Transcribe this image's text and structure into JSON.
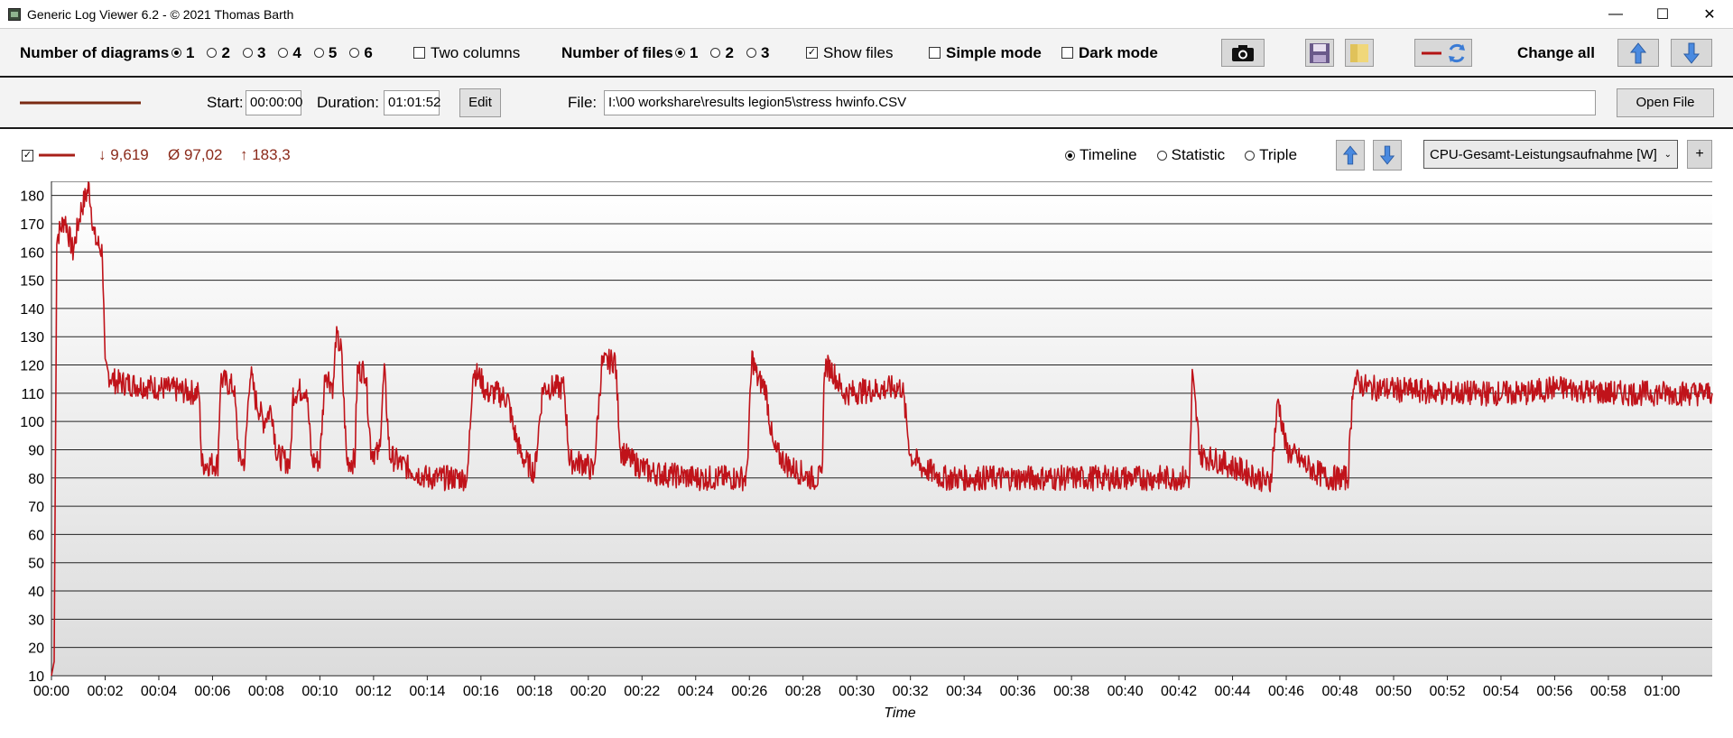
{
  "window": {
    "title": "Generic Log Viewer 6.2 - © 2021 Thomas Barth",
    "minimize": "—",
    "maximize": "☐",
    "close": "✕"
  },
  "toolbar": {
    "diagrams_label": "Number of diagrams",
    "diagram_options": [
      "1",
      "2",
      "3",
      "4",
      "5",
      "6"
    ],
    "diagram_selected": "1",
    "two_columns_label": "Two columns",
    "two_columns_checked": false,
    "files_label": "Number of files",
    "file_options": [
      "1",
      "2",
      "3"
    ],
    "file_selected": "1",
    "show_files_label": "Show files",
    "show_files_checked": true,
    "simple_mode_label": "Simple mode",
    "simple_mode_checked": false,
    "dark_mode_label": "Dark mode",
    "dark_mode_checked": false,
    "change_all_label": "Change all"
  },
  "file_row": {
    "start_label": "Start:",
    "start_value": "00:00:00",
    "duration_label": "Duration:",
    "duration_value": "01:01:52",
    "edit_label": "Edit",
    "file_label": "File:",
    "file_path": "I:\\00 workshare\\results legion5\\stress hwinfo.CSV",
    "open_file_label": "Open File",
    "line_color": "#7a2a12"
  },
  "series_row": {
    "min": "↓ 9,619",
    "avg": "Ø 97,02",
    "max": "↑ 183,3",
    "mode_options": [
      "Timeline",
      "Statistic",
      "Triple"
    ],
    "mode_selected": "Timeline",
    "sensor": "CPU-Gesamt-Leistungsaufnahme [W]",
    "add_label": "+"
  },
  "colors": {
    "line": "#c0131a",
    "line_dark": "#7a2a12",
    "stat_text": "#8b2a1a",
    "accent_arrow": "#3a7bd5"
  },
  "chart_data": {
    "type": "line",
    "xlabel": "Time",
    "ylabel": "",
    "ylim": [
      10,
      185
    ],
    "yticks": [
      10,
      20,
      30,
      40,
      50,
      60,
      70,
      80,
      90,
      100,
      110,
      120,
      130,
      140,
      150,
      160,
      170,
      180
    ],
    "xticks": [
      "00:00",
      "00:02",
      "00:04",
      "00:06",
      "00:08",
      "00:10",
      "00:12",
      "00:14",
      "00:16",
      "00:18",
      "00:20",
      "00:22",
      "00:24",
      "00:26",
      "00:28",
      "00:30",
      "00:32",
      "00:34",
      "00:36",
      "00:38",
      "00:40",
      "00:42",
      "00:44",
      "00:46",
      "00:48",
      "00:50",
      "00:52",
      "00:54",
      "00:56",
      "00:58",
      "01:00"
    ],
    "xlim_minutes": [
      0,
      61.87
    ],
    "grid": true,
    "series": [
      {
        "name": "CPU-Gesamt-Leistungsaufnahme [W]",
        "segments_minutes": [
          [
            0.0,
            10
          ],
          [
            0.1,
            15
          ],
          [
            0.2,
            165
          ],
          [
            0.5,
            172
          ],
          [
            0.8,
            160
          ],
          [
            1.1,
            175
          ],
          [
            1.4,
            183
          ],
          [
            1.6,
            165
          ],
          [
            1.9,
            160
          ],
          [
            2.0,
            118
          ],
          [
            2.4,
            114
          ],
          [
            5.5,
            110
          ],
          [
            5.6,
            85
          ],
          [
            6.2,
            85
          ],
          [
            6.3,
            115
          ],
          [
            6.8,
            112
          ],
          [
            7.0,
            86
          ],
          [
            7.2,
            86
          ],
          [
            7.4,
            118
          ],
          [
            7.6,
            108
          ],
          [
            7.9,
            100
          ],
          [
            8.2,
            105
          ],
          [
            8.4,
            88
          ],
          [
            8.9,
            85
          ],
          [
            9.0,
            110
          ],
          [
            9.5,
            112
          ],
          [
            9.7,
            86
          ],
          [
            10.0,
            86
          ],
          [
            10.2,
            118
          ],
          [
            10.5,
            112
          ],
          [
            10.6,
            130
          ],
          [
            10.8,
            125
          ],
          [
            11.0,
            86
          ],
          [
            11.3,
            86
          ],
          [
            11.4,
            118
          ],
          [
            11.7,
            118
          ],
          [
            11.9,
            90
          ],
          [
            12.2,
            88
          ],
          [
            12.4,
            118
          ],
          [
            12.6,
            88
          ],
          [
            13.0,
            85
          ],
          [
            14.0,
            80
          ],
          [
            15.2,
            80
          ],
          [
            15.5,
            80
          ],
          [
            15.7,
            118
          ],
          [
            16.0,
            115
          ],
          [
            16.2,
            110
          ],
          [
            16.6,
            110
          ],
          [
            17.0,
            108
          ],
          [
            17.2,
            98
          ],
          [
            17.5,
            88
          ],
          [
            18.0,
            82
          ],
          [
            18.3,
            112
          ],
          [
            19.1,
            112
          ],
          [
            19.3,
            86
          ],
          [
            19.9,
            85
          ],
          [
            20.2,
            82
          ],
          [
            20.5,
            120
          ],
          [
            21.0,
            122
          ],
          [
            21.2,
            90
          ],
          [
            21.6,
            86
          ],
          [
            22.3,
            82
          ],
          [
            24.0,
            80
          ],
          [
            25.9,
            80
          ],
          [
            26.1,
            123
          ],
          [
            26.3,
            115
          ],
          [
            26.6,
            112
          ],
          [
            26.9,
            90
          ],
          [
            27.5,
            84
          ],
          [
            28.3,
            80
          ],
          [
            28.7,
            80
          ],
          [
            28.8,
            120
          ],
          [
            29.1,
            118
          ],
          [
            29.5,
            110
          ],
          [
            31.5,
            112
          ],
          [
            31.7,
            112
          ],
          [
            32.0,
            88
          ],
          [
            32.4,
            84
          ],
          [
            33.2,
            80
          ],
          [
            35.0,
            80
          ],
          [
            38.0,
            80
          ],
          [
            40.0,
            80
          ],
          [
            42.0,
            80
          ],
          [
            42.4,
            80
          ],
          [
            42.5,
            116
          ],
          [
            42.8,
            88
          ],
          [
            43.5,
            86
          ],
          [
            45.0,
            80
          ],
          [
            45.4,
            78
          ],
          [
            45.7,
            108
          ],
          [
            46.0,
            90
          ],
          [
            46.8,
            84
          ],
          [
            47.5,
            80
          ],
          [
            48.3,
            80
          ],
          [
            48.5,
            115
          ],
          [
            49.0,
            112
          ],
          [
            52.0,
            110
          ],
          [
            55.0,
            110
          ],
          [
            56.0,
            112
          ],
          [
            58.0,
            110
          ],
          [
            60.0,
            110
          ],
          [
            61.87,
            110
          ]
        ]
      }
    ]
  }
}
